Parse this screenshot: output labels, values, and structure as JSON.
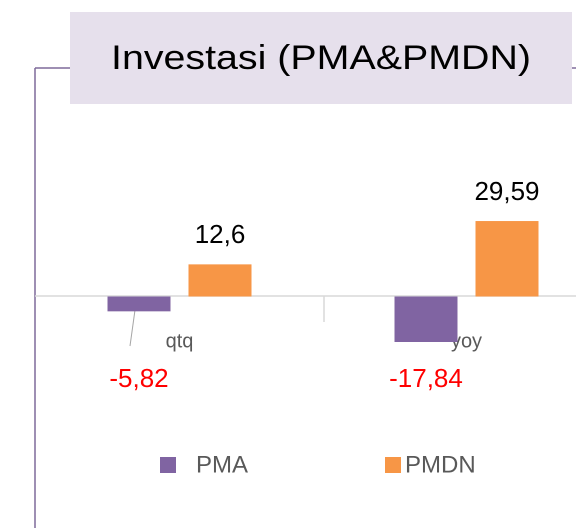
{
  "chart_data": {
    "type": "bar",
    "title": "Investasi (PMA&PMDN)",
    "categories": [
      "qtq",
      "yoy"
    ],
    "series": [
      {
        "name": "PMA",
        "color": "#8064a2",
        "values": [
          -5.82,
          -17.84
        ],
        "value_labels": [
          "-5,82",
          "-17,84"
        ],
        "label_color": "#ff0000"
      },
      {
        "name": "PMDN",
        "color": "#f79646",
        "values": [
          12.6,
          29.59
        ],
        "value_labels": [
          "12,6",
          "29,59"
        ],
        "label_color": "#000000"
      }
    ],
    "ylim": [
      -30,
      40
    ],
    "legend": "bottom"
  }
}
